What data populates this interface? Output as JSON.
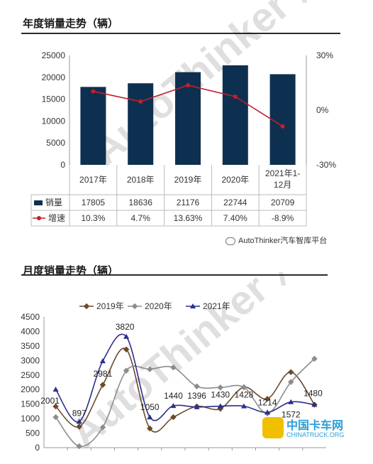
{
  "top_chart": {
    "title": "年度销量走势（辆）",
    "watermark": "AutoThinker 汽车智库",
    "footer_tag": "AutoThinker汽车智库平台"
  },
  "bottom_chart": {
    "title": "月度销量走势（辆）",
    "watermark": "AutoThinker 汽车智库平台",
    "logo_text": "中国卡车网",
    "logo_sub": "CHINATRUCK.ORG"
  },
  "colors": {
    "bar": "#0e3050",
    "growth_line": "#c0202a",
    "series_2019": "#6b4a2b",
    "series_2020": "#8c8c8c",
    "series_2021": "#2b2f8c"
  },
  "chart_data": [
    {
      "type": "bar",
      "categories": [
        "2017年",
        "2018年",
        "2019年",
        "2020年",
        "2021年1-12月"
      ],
      "series": [
        {
          "name": "销量",
          "values": [
            17805,
            18636,
            21176,
            22744,
            20709
          ],
          "axis": "left"
        },
        {
          "name": "增速",
          "values": [
            10.3,
            4.7,
            13.63,
            7.4,
            -8.9
          ],
          "axis": "right",
          "kind": "line"
        }
      ],
      "table_values": {
        "销量": [
          "17805",
          "18636",
          "21176",
          "22744",
          "20709"
        ],
        "增速": [
          "10.3%",
          "4.7%",
          "13.63%",
          "7.40%",
          "-8.9%"
        ]
      },
      "left_ticks": [
        "25000",
        "20000",
        "15000",
        "10000",
        "5000",
        "0"
      ],
      "right_ticks": [
        "30%",
        "0%",
        "-30%"
      ],
      "ylim": [
        0,
        25000
      ],
      "y2lim": [
        -30,
        30
      ],
      "grid": false,
      "legend": "table-bottom"
    },
    {
      "type": "line",
      "series": [
        {
          "name": "2019年",
          "values": [
            1420,
            720,
            2160,
            3380,
            660,
            1050,
            1420,
            1340,
            2080,
            1680,
            2600,
            1480
          ]
        },
        {
          "name": "2020年",
          "values": [
            1050,
            50,
            700,
            2650,
            2700,
            2760,
            2110,
            2070,
            2080,
            1180,
            2260,
            3060
          ]
        },
        {
          "name": "2021年",
          "values": [
            2001,
            897,
            2981,
            3820,
            1050,
            1440,
            1396,
            1430,
            1428,
            1214,
            1572,
            1480
          ]
        }
      ],
      "data_labels": [
        "2001",
        "897",
        "2981",
        "3820",
        "1050",
        "1440",
        "1396",
        "1430",
        "1428",
        "1214",
        "1572",
        "1480"
      ],
      "y_ticks": [
        "4500",
        "4000",
        "3500",
        "3000",
        "2500",
        "2000",
        "1500",
        "1000",
        "500",
        "0"
      ],
      "ylim": [
        0,
        4500
      ],
      "grid": false,
      "legend": "top-center"
    }
  ]
}
